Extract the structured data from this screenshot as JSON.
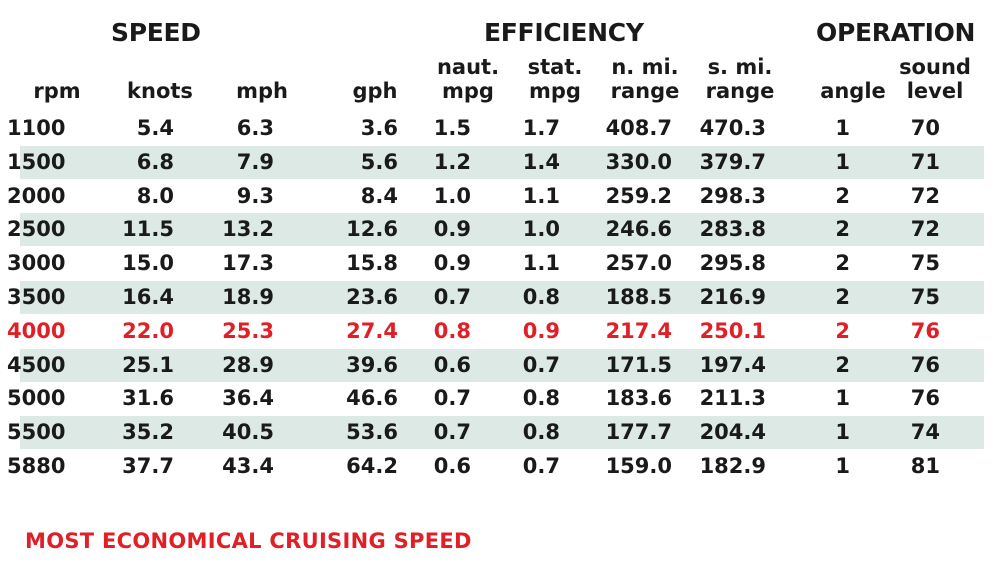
{
  "groups": {
    "speed": "SPEED",
    "efficiency": "EFFICIENCY",
    "operation": "OPERATION"
  },
  "columns": [
    {
      "key": "rpm",
      "line1": "",
      "line2": "rpm"
    },
    {
      "key": "knots",
      "line1": "",
      "line2": "knots"
    },
    {
      "key": "mph",
      "line1": "",
      "line2": "mph"
    },
    {
      "key": "gph",
      "line1": "",
      "line2": "gph"
    },
    {
      "key": "naut_mpg",
      "line1": "naut.",
      "line2": "mpg"
    },
    {
      "key": "stat_mpg",
      "line1": "stat.",
      "line2": "mpg"
    },
    {
      "key": "n_mi_range",
      "line1": "n. mi.",
      "line2": "range"
    },
    {
      "key": "s_mi_range",
      "line1": "s. mi.",
      "line2": "range"
    },
    {
      "key": "angle",
      "line1": "",
      "line2": "angle"
    },
    {
      "key": "sound_level",
      "line1": "sound",
      "line2": "level"
    }
  ],
  "rows": [
    {
      "values": [
        "1100",
        "5.4",
        "6.3",
        "3.6",
        "1.5",
        "1.7",
        "408.7",
        "470.3",
        "1",
        "70"
      ],
      "shaded": false,
      "highlight": false
    },
    {
      "values": [
        "1500",
        "6.8",
        "7.9",
        "5.6",
        "1.2",
        "1.4",
        "330.0",
        "379.7",
        "1",
        "71"
      ],
      "shaded": true,
      "highlight": false
    },
    {
      "values": [
        "2000",
        "8.0",
        "9.3",
        "8.4",
        "1.0",
        "1.1",
        "259.2",
        "298.3",
        "2",
        "72"
      ],
      "shaded": false,
      "highlight": false
    },
    {
      "values": [
        "2500",
        "11.5",
        "13.2",
        "12.6",
        "0.9",
        "1.0",
        "246.6",
        "283.8",
        "2",
        "72"
      ],
      "shaded": true,
      "highlight": false
    },
    {
      "values": [
        "3000",
        "15.0",
        "17.3",
        "15.8",
        "0.9",
        "1.1",
        "257.0",
        "295.8",
        "2",
        "75"
      ],
      "shaded": false,
      "highlight": false
    },
    {
      "values": [
        "3500",
        "16.4",
        "18.9",
        "23.6",
        "0.7",
        "0.8",
        "188.5",
        "216.9",
        "2",
        "75"
      ],
      "shaded": true,
      "highlight": false
    },
    {
      "values": [
        "4000",
        "22.0",
        "25.3",
        "27.4",
        "0.8",
        "0.9",
        "217.4",
        "250.1",
        "2",
        "76"
      ],
      "shaded": false,
      "highlight": true
    },
    {
      "values": [
        "4500",
        "25.1",
        "28.9",
        "39.6",
        "0.6",
        "0.7",
        "171.5",
        "197.4",
        "2",
        "76"
      ],
      "shaded": true,
      "highlight": false
    },
    {
      "values": [
        "5000",
        "31.6",
        "36.4",
        "46.6",
        "0.7",
        "0.8",
        "183.6",
        "211.3",
        "1",
        "76"
      ],
      "shaded": false,
      "highlight": false
    },
    {
      "values": [
        "5500",
        "35.2",
        "40.5",
        "53.6",
        "0.7",
        "0.8",
        "177.7",
        "204.4",
        "1",
        "74"
      ],
      "shaded": true,
      "highlight": false
    },
    {
      "values": [
        "5880",
        "37.7",
        "43.4",
        "64.2",
        "0.6",
        "0.7",
        "159.0",
        "182.9",
        "1",
        "81"
      ],
      "shaded": false,
      "highlight": false
    }
  ],
  "colors": {
    "highlight": "#e01f26",
    "stripe": "#dce9e4",
    "text": "#1a1a1a"
  },
  "footnote": "MOST ECONOMICAL CRUISING SPEED"
}
